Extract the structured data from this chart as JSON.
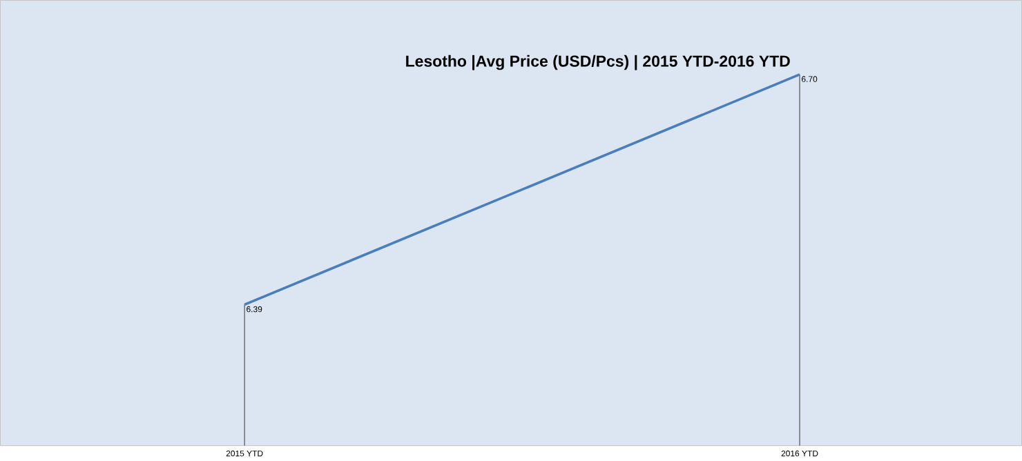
{
  "chart_data": {
    "type": "line",
    "title": "Lesotho  |Avg Price (USD/Pcs) | 2015 YTD-2016 YTD",
    "categories": [
      "2015 YTD",
      "2016 YTD"
    ],
    "series": [
      {
        "color": "#4a7ebb",
        "values": [
          6.39,
          6.7
        ],
        "value_labels": [
          "6.39",
          "6.70"
        ]
      }
    ],
    "ylim": [
      6.2,
      6.8
    ],
    "tick_labels": "x",
    "marker": "none"
  }
}
